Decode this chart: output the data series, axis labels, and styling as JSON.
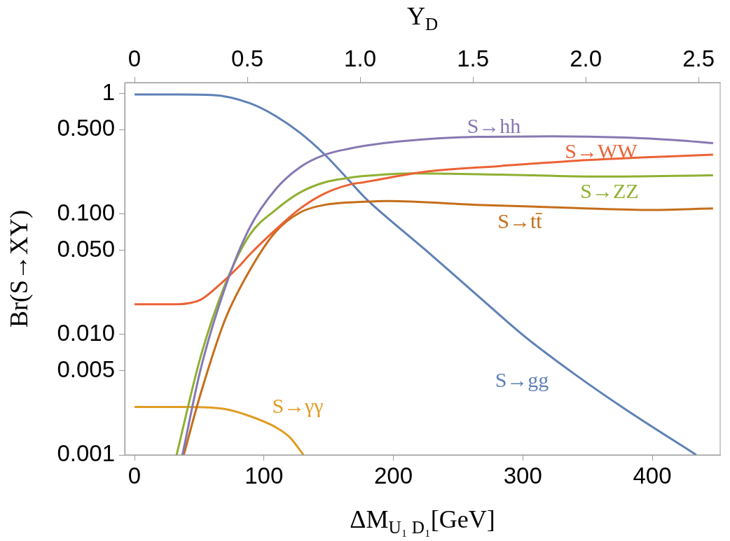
{
  "chart_data": {
    "type": "line",
    "xlabel": "ΔM$_{U₁ D₁}$[GeV]",
    "ylabel": "Br(S→XY)",
    "x2label": "Y$_{D}$",
    "xlim": [
      -7.6,
      452.5
    ],
    "xticks": [
      0,
      100,
      200,
      300,
      400
    ],
    "x2lim": [
      -0.0436,
      2.596
    ],
    "x2ticks": [
      0,
      0.5,
      {
        "value": 1,
        "label": "1.0"
      },
      {
        "value": 1.5,
        "label": "1.5"
      },
      {
        "value": 2,
        "label": "2.0"
      },
      2.5
    ],
    "ylim": [
      0.001,
      1.23
    ],
    "log": "y",
    "yticks": [
      {
        "value": 0.001,
        "label": "0.001"
      },
      {
        "value": 0.005,
        "label": "0.005"
      },
      {
        "value": 0.01,
        "label": "0.010"
      },
      {
        "value": 0.05,
        "label": "0.050"
      },
      {
        "value": 0.1,
        "label": "0.100"
      },
      {
        "value": 0.5,
        "label": "0.500"
      },
      1
    ],
    "grid": false,
    "legend": false,
    "marker": "none",
    "line_style": "solid",
    "series": [
      {
        "name": "S→hh",
        "color": "#8778b3",
        "x": [
          37,
          51,
          70,
          89,
          109,
          128,
          147,
          167,
          177,
          205,
          264,
          321,
          379,
          418,
          447
        ],
        "values": [
          0.001,
          0.0051,
          0.0245,
          0.077,
          0.16,
          0.245,
          0.31,
          0.35,
          0.367,
          0.4,
          0.436,
          0.44,
          0.43,
          0.41,
          0.387
        ]
      },
      {
        "name": "S→WW",
        "color": "#eb6235",
        "x": [
          0,
          31,
          51,
          66,
          80,
          89,
          109,
          128,
          147,
          167,
          177,
          225,
          283,
          341,
          399,
          447
        ],
        "values": [
          0.0178,
          0.0178,
          0.0194,
          0.026,
          0.036,
          0.046,
          0.074,
          0.111,
          0.148,
          0.176,
          0.183,
          0.224,
          0.25,
          0.276,
          0.296,
          0.31
        ]
      },
      {
        "name": "S→ZZ",
        "color": "#8fb032",
        "x": [
          32.5,
          51,
          70,
          89,
          109,
          128,
          147,
          167,
          177,
          215,
          283,
          360,
          447
        ],
        "values": [
          0.001,
          0.0065,
          0.026,
          0.067,
          0.108,
          0.151,
          0.183,
          0.2,
          0.206,
          0.217,
          0.212,
          0.204,
          0.209
        ]
      },
      {
        "name": "S→tt̄",
        "color": "#c56e1a",
        "x": [
          38,
          51,
          70,
          89,
          109,
          128,
          147,
          177,
          196,
          264,
          341,
          399,
          447
        ],
        "values": [
          0.001,
          0.0032,
          0.0133,
          0.034,
          0.071,
          0.103,
          0.119,
          0.126,
          0.128,
          0.119,
          0.112,
          0.108,
          0.111
        ]
      },
      {
        "name": "S→gg",
        "color": "#5e81b5",
        "x": [
          0,
          30,
          60,
          89,
          109,
          128,
          147,
          177,
          180,
          225,
          264,
          302,
          341,
          379,
          434
        ],
        "values": [
          0.98,
          0.98,
          0.97,
          0.83,
          0.65,
          0.47,
          0.31,
          0.14,
          0.13,
          0.05,
          0.0215,
          0.0095,
          0.0046,
          0.0024,
          0.001
        ]
      },
      {
        "name": "S→γγ",
        "color": "#e19c24",
        "x": [
          0,
          41,
          70,
          89,
          109,
          120,
          130.5
        ],
        "values": [
          0.0025,
          0.0025,
          0.0024,
          0.0021,
          0.0017,
          0.0014,
          0.001
        ]
      }
    ]
  }
}
